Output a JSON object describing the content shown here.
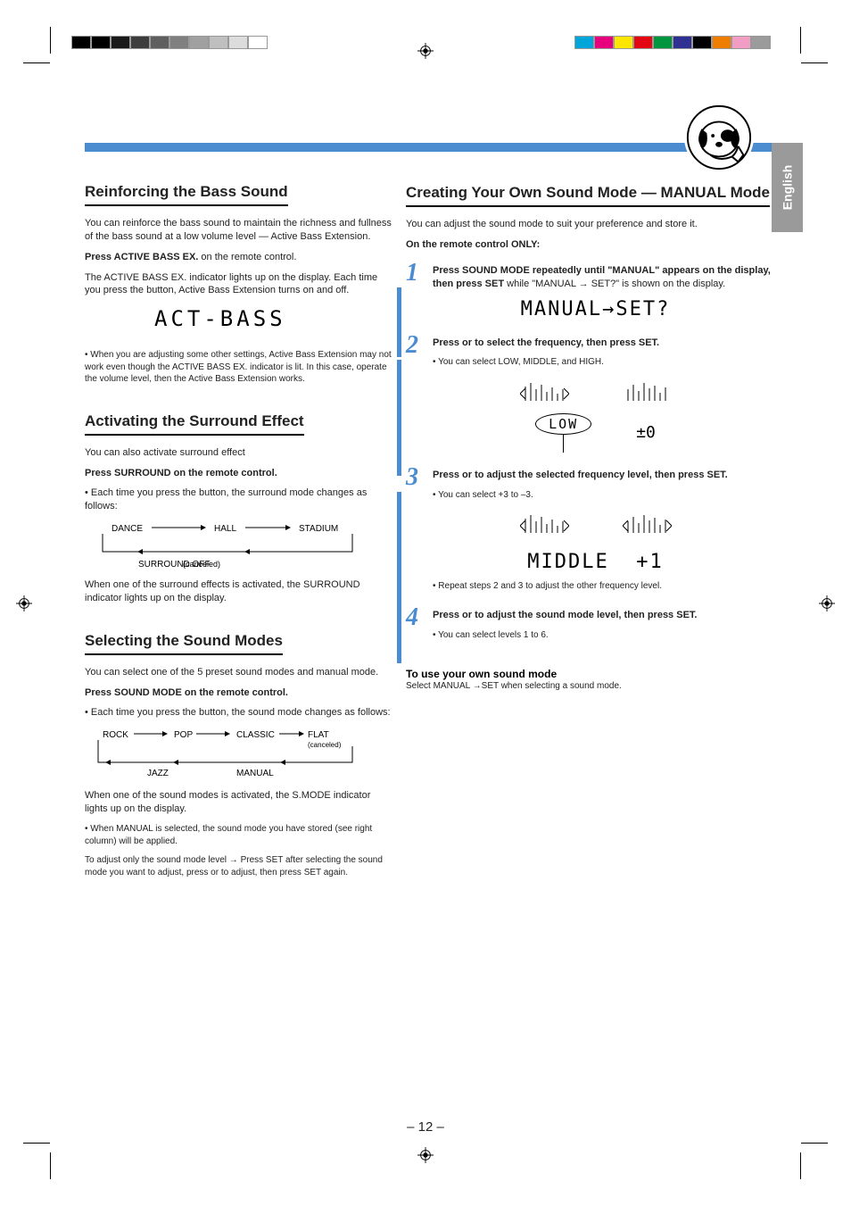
{
  "lang_tab": "English",
  "page_number": "– 12 –",
  "left": {
    "sec1": {
      "title": "Reinforcing the Bass Sound",
      "p1": "You can reinforce the bass sound to maintain the richness and fullness of the bass sound at a low volume level — Active Bass Extension.",
      "p2_a": "Press ACTIVE BASS EX. ",
      "p2_b": "on the remote control.",
      "p3": "The ACTIVE BASS EX. indicator lights up on the display. Each time you press the button, Active Bass Extension turns on and off.",
      "display": "ACT-BASS",
      "p4": "• When you are adjusting some other settings, Active Bass Extension may not work even though the ACTIVE BASS EX. indicator is lit. In this case, operate the volume level, then the Active Bass Extension works."
    },
    "sec2": {
      "title": "Activating the Surround Effect",
      "p1": "You can also activate surround effect",
      "p2": "Press SURROUND on the remote control.",
      "p3": "• Each time you press the button, the surround mode changes as follows:",
      "cycle": [
        "DANCE",
        "HALL",
        "STADIUM"
      ],
      "cycle2": [
        "(canceled)",
        "SURROUND OFF"
      ],
      "p4": "When one of the surround effects is activated, the SURROUND indicator lights up on the display."
    },
    "sec3": {
      "title": "Selecting the Sound Modes",
      "p1": "You can select one of the 5 preset sound modes and manual mode.",
      "p2": "Press SOUND MODE on the remote control.",
      "p3": "• Each time you press the button, the sound mode changes as follows:",
      "cycle": [
        "ROCK",
        "POP",
        "CLASSIC",
        "FLAT (canceled)"
      ],
      "cycle2": [
        "MANUAL",
        "JAZZ"
      ],
      "p4": "When one of the sound modes is activated, the S.MODE indicator lights up on the display.",
      "p5": "• When MANUAL is selected, the sound mode you have stored (see right column) will be applied.",
      "p6": "",
      "p6_arrow": "To adjust only the sound mode level →",
      "p6_suffix": " Press SET after selecting the sound mode you want to adjust, press  or  to adjust, then press SET again."
    }
  },
  "right": {
    "title": "Creating Your Own Sound Mode — MANUAL Mode",
    "p_intro": "You can adjust the sound mode to suit your preference and store it.",
    "p_remote": "On the remote control ONLY:",
    "step1": {
      "num": "1",
      "text": "Press SOUND MODE repeatedly until \"MANUAL\" appears on the display, then press SET while \"MANUAL → SET?\" is shown on the display.",
      "seg": "MANUAL→SET?"
    },
    "step2": {
      "num": "2",
      "text_a": "Press  or  to select the frequency, then press SET.",
      "text_b": "• You can select LOW, MIDDLE, and HIGH.",
      "oval": "LOW",
      "val": "±0"
    },
    "step3": {
      "num": "3",
      "text_a": "Press  or  to adjust the selected frequency level, then press SET.",
      "text_b": "• You can select +3 to –3.",
      "label": "MIDDLE",
      "val": "+1",
      "text_c": "• Repeat steps 2 and 3 to adjust the other frequency level."
    },
    "step4": {
      "num": "4",
      "text_a": "Press  or  to adjust the sound mode level, then press SET.",
      "text_b": "• You can select levels 1 to 6."
    },
    "footer": {
      "title": "To use your own sound mode",
      "text": "Select MANUAL →SET when selecting a sound mode."
    }
  },
  "colors": {
    "accent": "#4a8ccf",
    "tab_bg": "#9a9a9a",
    "text": "#222222",
    "color_bar_left": [
      "#000000",
      "#000000",
      "#1a1a1a",
      "#3d3d3d",
      "#5f5f5f",
      "#808080",
      "#a0a0a0",
      "#bfbfbf",
      "#dcdcdc",
      "#ffffff"
    ],
    "color_bar_right": [
      "#00a5d9",
      "#e6007e",
      "#ffe600",
      "#e30613",
      "#009640",
      "#2e3192",
      "#000000",
      "#ef7d00",
      "#f29ec4",
      "#9c9b9b"
    ]
  }
}
